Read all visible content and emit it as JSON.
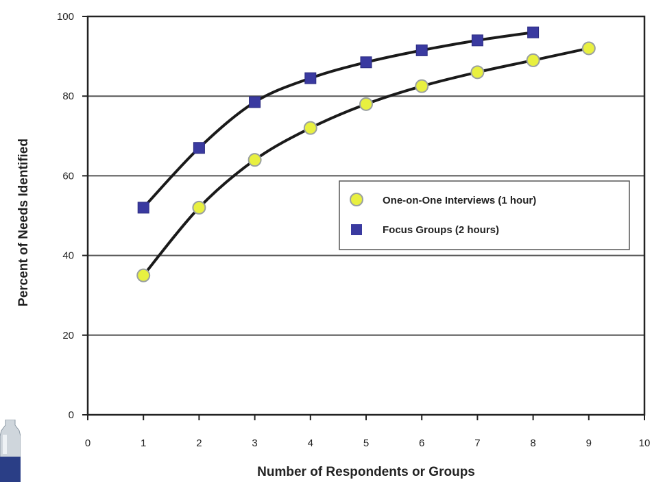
{
  "chart_data": {
    "type": "line",
    "title": "",
    "xlabel": "Number of Respondents or Groups",
    "ylabel": "Percent of Needs Identified",
    "xlim": [
      0,
      10
    ],
    "ylim": [
      0,
      100
    ],
    "x_ticks": [
      "0",
      "1",
      "2",
      "3",
      "4",
      "5",
      "6",
      "7",
      "8",
      "9",
      "10"
    ],
    "y_ticks": [
      "0",
      "20",
      "40",
      "60",
      "80",
      "100"
    ],
    "grid": "horizontal",
    "legend_position": "right-middle",
    "series": [
      {
        "name": "One-on-One Interviews (1 hour)",
        "marker": "circle",
        "marker_color": "#e8f040",
        "line_color": "#1a1a1a",
        "x": [
          1,
          2,
          3,
          4,
          5,
          6,
          7,
          8,
          9
        ],
        "y": [
          35,
          52,
          64,
          72,
          78,
          82.5,
          86,
          89,
          92
        ]
      },
      {
        "name": "Focus Groups (2 hours)",
        "marker": "square",
        "marker_color": "#3a3aa0",
        "line_color": "#1a1a1a",
        "x": [
          1,
          2,
          3,
          4,
          5,
          6,
          7,
          8
        ],
        "y": [
          52,
          67,
          78.5,
          84.5,
          88.5,
          91.5,
          94,
          96
        ]
      }
    ]
  }
}
